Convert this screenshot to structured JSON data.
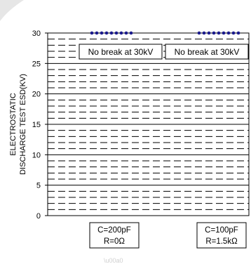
{
  "chart_data": {
    "type": "scatter",
    "ylabel_lines": [
      "ELECTROSTATIC",
      "DISCHARGE TEST ESD(KV)"
    ],
    "ylim": [
      0,
      30
    ],
    "y_ticks": [
      0,
      5,
      10,
      15,
      20,
      25,
      30
    ],
    "minor_gridlines": true,
    "categories": [
      {
        "lines": [
          "C=200pF",
          "R=0Ω"
        ]
      },
      {
        "lines": [
          "C=100pF",
          "R=1.5kΩ"
        ]
      }
    ],
    "series": [
      {
        "values": [
          30,
          30
        ],
        "color": "#1a1a8c"
      }
    ],
    "annotations": [
      "No break at 30kV",
      "No break at 30kV"
    ]
  }
}
